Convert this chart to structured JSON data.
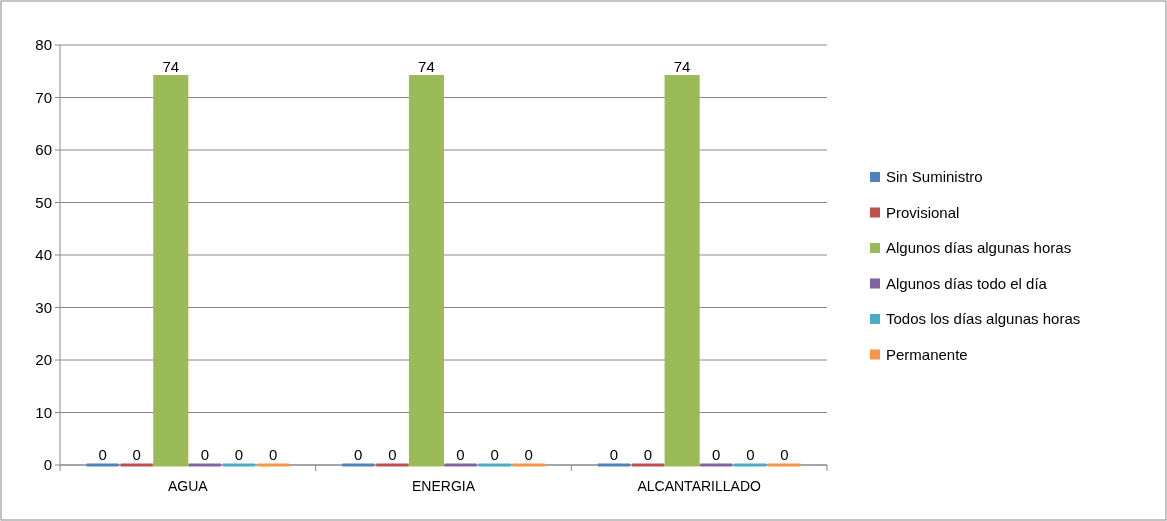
{
  "chart_data": {
    "type": "bar",
    "categories": [
      "AGUA",
      "ENERGIA",
      "ALCANTARILLADO"
    ],
    "series": [
      {
        "name": "Sin Suministro",
        "color": "#4f81bd",
        "values": [
          0,
          0,
          0
        ]
      },
      {
        "name": "Provisional",
        "color": "#c0504d",
        "values": [
          0,
          0,
          0
        ]
      },
      {
        "name": "Algunos días algunas horas",
        "color": "#9bbb59",
        "values": [
          74,
          74,
          74
        ]
      },
      {
        "name": "Algunos días todo el día",
        "color": "#8064a2",
        "values": [
          0,
          0,
          0
        ]
      },
      {
        "name": "Todos los días algunas horas",
        "color": "#4bacc6",
        "values": [
          0,
          0,
          0
        ]
      },
      {
        "name": "Permanente",
        "color": "#f79646",
        "values": [
          0,
          0,
          0
        ]
      }
    ],
    "ylim": [
      0,
      80
    ],
    "yticks": [
      0,
      10,
      20,
      30,
      40,
      50,
      60,
      70,
      80
    ],
    "grid": "y",
    "legend": "right",
    "data_labels": true
  }
}
